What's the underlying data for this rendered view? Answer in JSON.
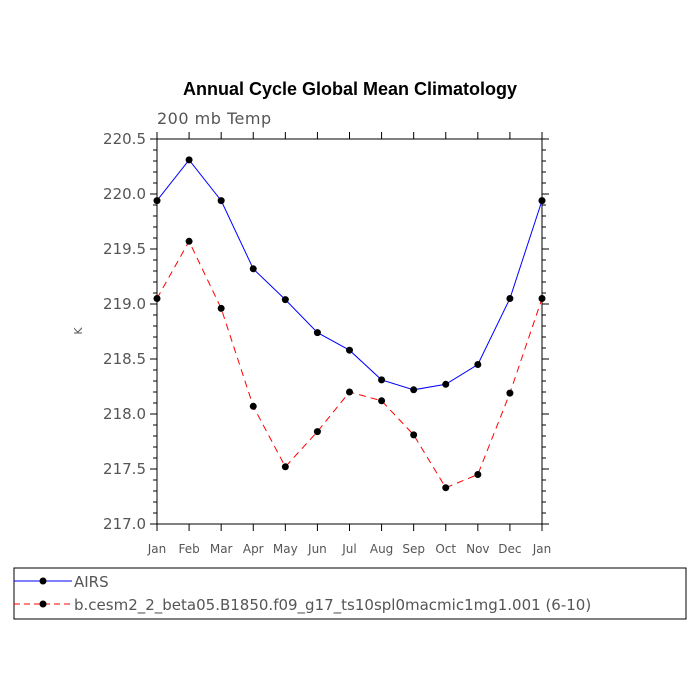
{
  "chart_data": {
    "type": "line",
    "title": "Annual Cycle Global Mean Climatology",
    "subtitle": "200 mb Temp",
    "xlabel": "",
    "ylabel": "K",
    "categories": [
      "Jan",
      "Feb",
      "Mar",
      "Apr",
      "May",
      "Jun",
      "Jul",
      "Aug",
      "Sep",
      "Oct",
      "Nov",
      "Dec",
      "Jan"
    ],
    "ylim": [
      217.0,
      220.5
    ],
    "yticks": [
      "217.0",
      "217.5",
      "218.0",
      "218.5",
      "219.0",
      "219.5",
      "220.0",
      "220.5"
    ],
    "series": [
      {
        "name": "AIRS",
        "color": "#0000ff",
        "dashed": false,
        "values": [
          219.94,
          220.31,
          219.94,
          219.32,
          219.04,
          218.74,
          218.58,
          218.31,
          218.22,
          218.27,
          218.45,
          219.05,
          219.94
        ]
      },
      {
        "name": "b.cesm2_2_beta05.B1850.f09_g17_ts10spl0macmic1mg1.001 (6-10)",
        "color": "#ff0000",
        "dashed": true,
        "values": [
          219.05,
          219.57,
          218.96,
          218.07,
          217.52,
          217.84,
          218.2,
          218.12,
          217.81,
          217.33,
          217.45,
          218.19,
          219.05
        ]
      }
    ]
  }
}
